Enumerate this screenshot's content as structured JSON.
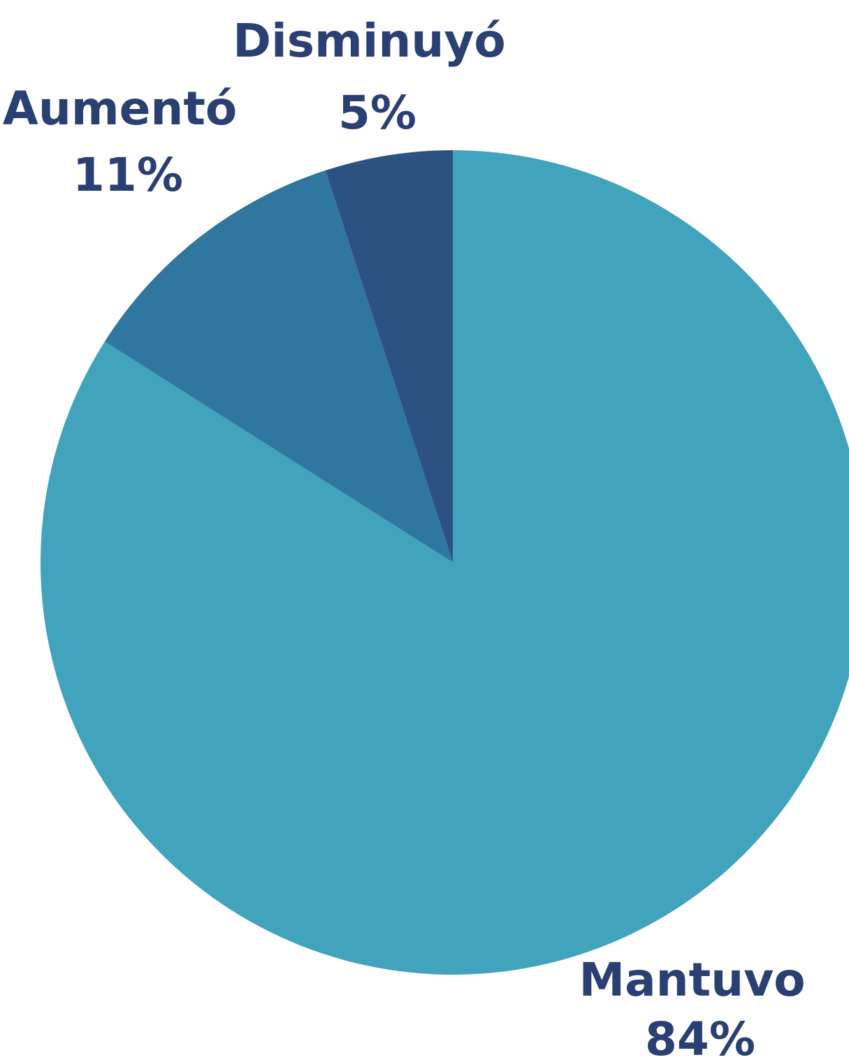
{
  "chart_data": {
    "type": "pie",
    "slices": [
      {
        "name": "Disminuyó",
        "value": 5,
        "value_label": "5%",
        "color": "#2c5282"
      },
      {
        "name": "Aumentó",
        "value": 11,
        "value_label": "11%",
        "color": "#2f779f"
      },
      {
        "name": "Mantuvo",
        "value": 84,
        "value_label": "84%",
        "color": "#41a3bc"
      }
    ],
    "start_angle_deg": 0,
    "direction": "counterclockwise",
    "label_color": "#2a3f72"
  }
}
